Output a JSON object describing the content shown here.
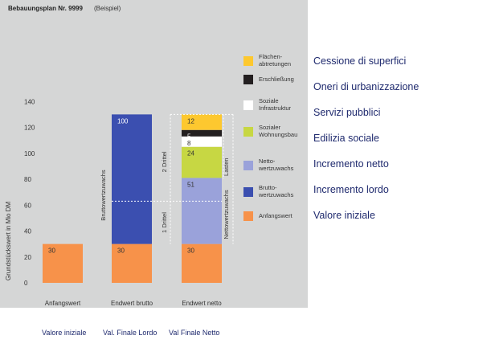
{
  "chart_data": {
    "type": "bar",
    "stacked": true,
    "title": "Bebauungsplan Nr. 9999",
    "subtitle": "(Beispiel)",
    "ylabel": "Grundstückswert in Mio DM",
    "ylim": [
      0,
      140
    ],
    "yticks": [
      0,
      20,
      40,
      60,
      80,
      100,
      120,
      140
    ],
    "grid": false,
    "legend_position": "right",
    "categories": [
      "Anfangswert",
      "Endwert brutto",
      "Endwert netto"
    ],
    "series": [
      {
        "name": "Anfangswert",
        "color": "#f7924a",
        "values": [
          30,
          30,
          30
        ],
        "labels": [
          "30",
          "30",
          "30"
        ]
      },
      {
        "name": "Bruttowertzuwachs",
        "color": "#3b4fb0",
        "values": [
          0,
          100,
          0
        ],
        "labels": [
          "",
          "100",
          ""
        ]
      },
      {
        "name": "Nettowertzuwachs",
        "color": "#9aa2da",
        "values": [
          0,
          0,
          51
        ],
        "labels": [
          "",
          "",
          "51"
        ]
      },
      {
        "name": "Sozialer Wohnungsbau",
        "color": "#c7d743",
        "values": [
          0,
          0,
          24
        ],
        "labels": [
          "",
          "",
          "24"
        ]
      },
      {
        "name": "Soziale Infrastruktur",
        "color": "#ffffff",
        "values": [
          0,
          0,
          8
        ],
        "labels": [
          "",
          "",
          "8"
        ]
      },
      {
        "name": "Erschließung",
        "color": "#231f20",
        "values": [
          0,
          0,
          5
        ],
        "labels": [
          "",
          "",
          "5"
        ]
      },
      {
        "name": "Flächenabtretungen",
        "color": "#fdc82f",
        "values": [
          0,
          0,
          12
        ],
        "labels": [
          "",
          "",
          "12"
        ]
      }
    ],
    "legend": [
      {
        "lines": [
          "Flächen-",
          "abtretungen"
        ],
        "color": "#fdc82f"
      },
      {
        "lines": [
          "Erschließung"
        ],
        "color": "#231f20"
      },
      {
        "lines": [
          "Soziale",
          "Infrastruktur"
        ],
        "color": "#ffffff"
      },
      {
        "lines": [
          "Sozialer",
          "Wohnungsbau"
        ],
        "color": "#c7d743"
      },
      {
        "lines": [
          "Netto-",
          "wertzuwachs"
        ],
        "color": "#9aa2da"
      },
      {
        "lines": [
          "Brutto-",
          "wertzuwachs"
        ],
        "color": "#3b4fb0"
      },
      {
        "lines": [
          "Anfangswert"
        ],
        "color": "#f7924a"
      }
    ],
    "annotations": {
      "bruttowertzuwachs": "Bruttowertzuwachs",
      "nettowertzuwachs": "Nettowertzuwachs",
      "lasten": "Lasten",
      "zwei_drittel": "2 Drittel",
      "ein_drittel": "1 Drittel"
    }
  },
  "italian_legend": [
    "Cessione di superfici",
    "Oneri di urbanizzazione",
    "Servizi pubblici",
    "Edilizia sociale",
    "Incremento netto",
    "Incremento lordo",
    "Valore iniziale"
  ],
  "bottom_labels": [
    "Valore iniziale",
    "Val. Finale Lordo",
    "Val Finale Netto"
  ]
}
